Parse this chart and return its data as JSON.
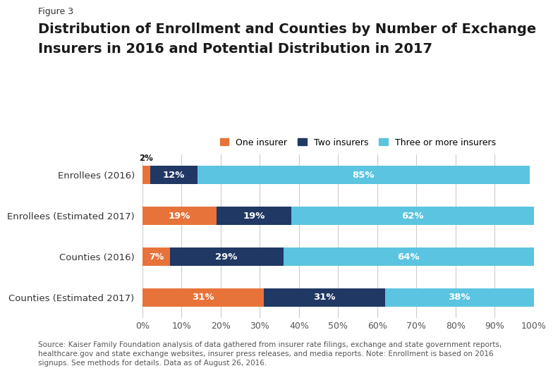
{
  "figure_label": "Figure 3",
  "title_line1": "Distribution of Enrollment and Counties by Number of Exchange",
  "title_line2": "Insurers in 2016 and Potential Distribution in 2017",
  "categories": [
    "Counties (Estimated 2017)",
    "Counties (2016)",
    "Enrollees (Estimated 2017)",
    "Enrollees (2016)"
  ],
  "one_insurer": [
    31,
    7,
    19,
    2
  ],
  "two_insurers": [
    31,
    29,
    19,
    12
  ],
  "three_plus": [
    38,
    64,
    62,
    85
  ],
  "color_one": "#e8733a",
  "color_two": "#1f3864",
  "color_three": "#5bc4e0",
  "legend_labels": [
    "One insurer",
    "Two insurers",
    "Three or more insurers"
  ],
  "source_text": "Source: Kaiser Family Foundation analysis of data gathered from insurer rate filings, exchange and state government reports,\nhealthcare.gov and state exchange websites, insurer press releases, and media reports. Note: Enrollment is based on 2016\nsignups. See methods for details. Data as of August 26, 2016.",
  "bar_height": 0.45,
  "background_color": "#ffffff",
  "grid_color": "#cccccc",
  "label_color_white": "#ffffff",
  "label_color_dark": "#1a1a1a"
}
